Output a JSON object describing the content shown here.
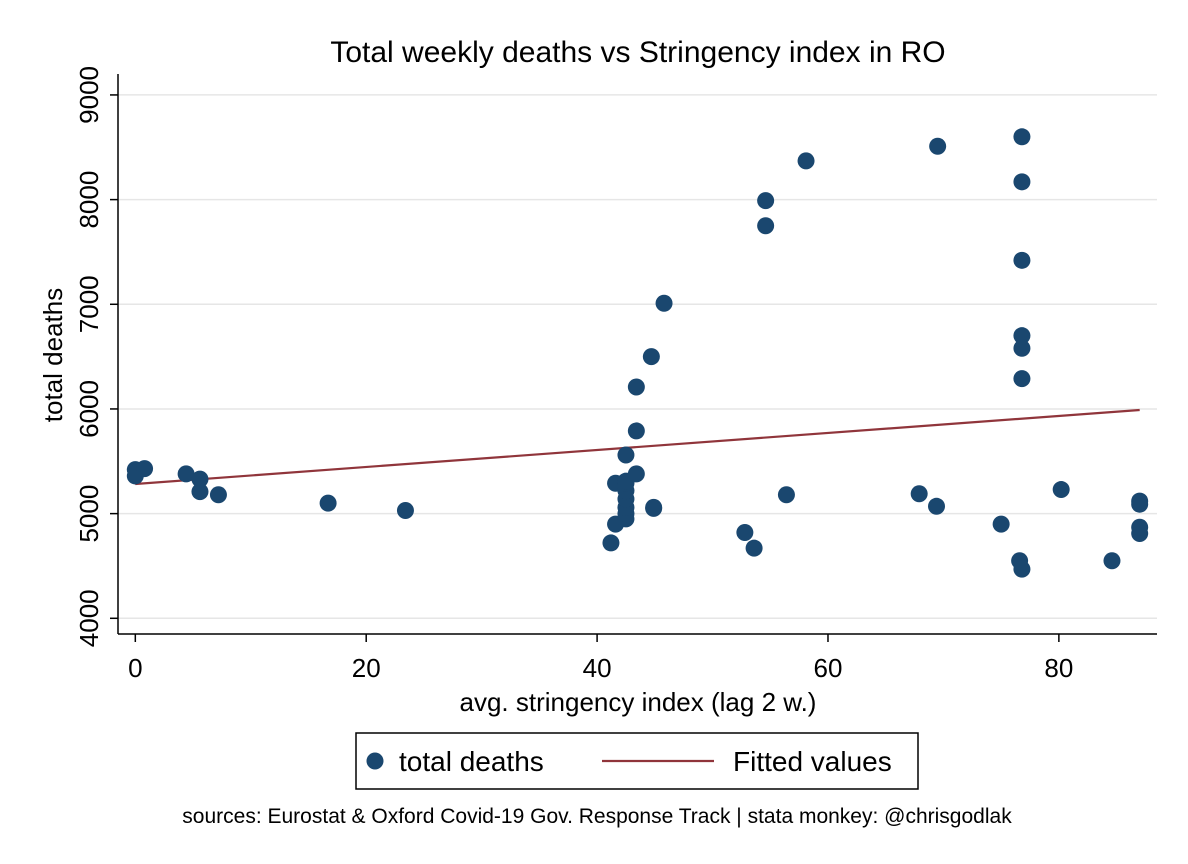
{
  "chart_data": {
    "type": "scatter",
    "title": "Total weekly deaths vs Stringency index in RO",
    "xlabel": "avg. stringency index (lag 2 w.)",
    "ylabel": "total deaths",
    "xlim": [
      -1.5,
      88.5
    ],
    "ylim": [
      3850,
      9200
    ],
    "xticks": [
      0,
      20,
      40,
      60,
      80
    ],
    "yticks": [
      4000,
      5000,
      6000,
      7000,
      8000,
      9000
    ],
    "grid": "horizontal",
    "legend_position": "bottom",
    "colors": {
      "points": "#1a476f",
      "fit": "#90353b",
      "grid": "#e6e6e6"
    },
    "series": [
      {
        "name": "total deaths",
        "kind": "scatter",
        "points": [
          [
            0,
            5420
          ],
          [
            0,
            5360
          ],
          [
            0.8,
            5430
          ],
          [
            4.4,
            5380
          ],
          [
            5.6,
            5330
          ],
          [
            5.6,
            5210
          ],
          [
            7.2,
            5180
          ],
          [
            16.7,
            5100
          ],
          [
            23.4,
            5030
          ],
          [
            41.2,
            4720
          ],
          [
            41.6,
            4900
          ],
          [
            41.6,
            5290
          ],
          [
            42.5,
            4950
          ],
          [
            42.5,
            5000
          ],
          [
            42.5,
            5060
          ],
          [
            42.5,
            5140
          ],
          [
            42.5,
            5220
          ],
          [
            42.5,
            5290
          ],
          [
            42.5,
            5310
          ],
          [
            42.5,
            5560
          ],
          [
            43.4,
            5380
          ],
          [
            43.4,
            5790
          ],
          [
            43.4,
            6210
          ],
          [
            44.7,
            6500
          ],
          [
            44.9,
            5050
          ],
          [
            44.9,
            5060
          ],
          [
            45.8,
            7010
          ],
          [
            52.8,
            4820
          ],
          [
            53.6,
            4670
          ],
          [
            54.6,
            7750
          ],
          [
            54.6,
            7990
          ],
          [
            56.4,
            5180
          ],
          [
            58.1,
            8370
          ],
          [
            67.9,
            5190
          ],
          [
            69.4,
            5070
          ],
          [
            69.5,
            8510
          ],
          [
            75.0,
            4900
          ],
          [
            76.6,
            4550
          ],
          [
            76.8,
            4470
          ],
          [
            76.8,
            6290
          ],
          [
            76.8,
            6580
          ],
          [
            76.8,
            6700
          ],
          [
            76.8,
            7420
          ],
          [
            76.8,
            8170
          ],
          [
            76.8,
            8600
          ],
          [
            80.2,
            5230
          ],
          [
            84.6,
            4550
          ],
          [
            87.0,
            4810
          ],
          [
            87.0,
            4870
          ],
          [
            87.0,
            5090
          ],
          [
            87.0,
            5120
          ]
        ]
      },
      {
        "name": "Fitted values",
        "kind": "line",
        "points": [
          [
            0,
            5283
          ],
          [
            87.0,
            5990
          ]
        ]
      }
    ]
  },
  "source_note": "sources: Eurostat & Oxford Covid-19 Gov. Response Track | stata monkey: @chrisgodlak"
}
